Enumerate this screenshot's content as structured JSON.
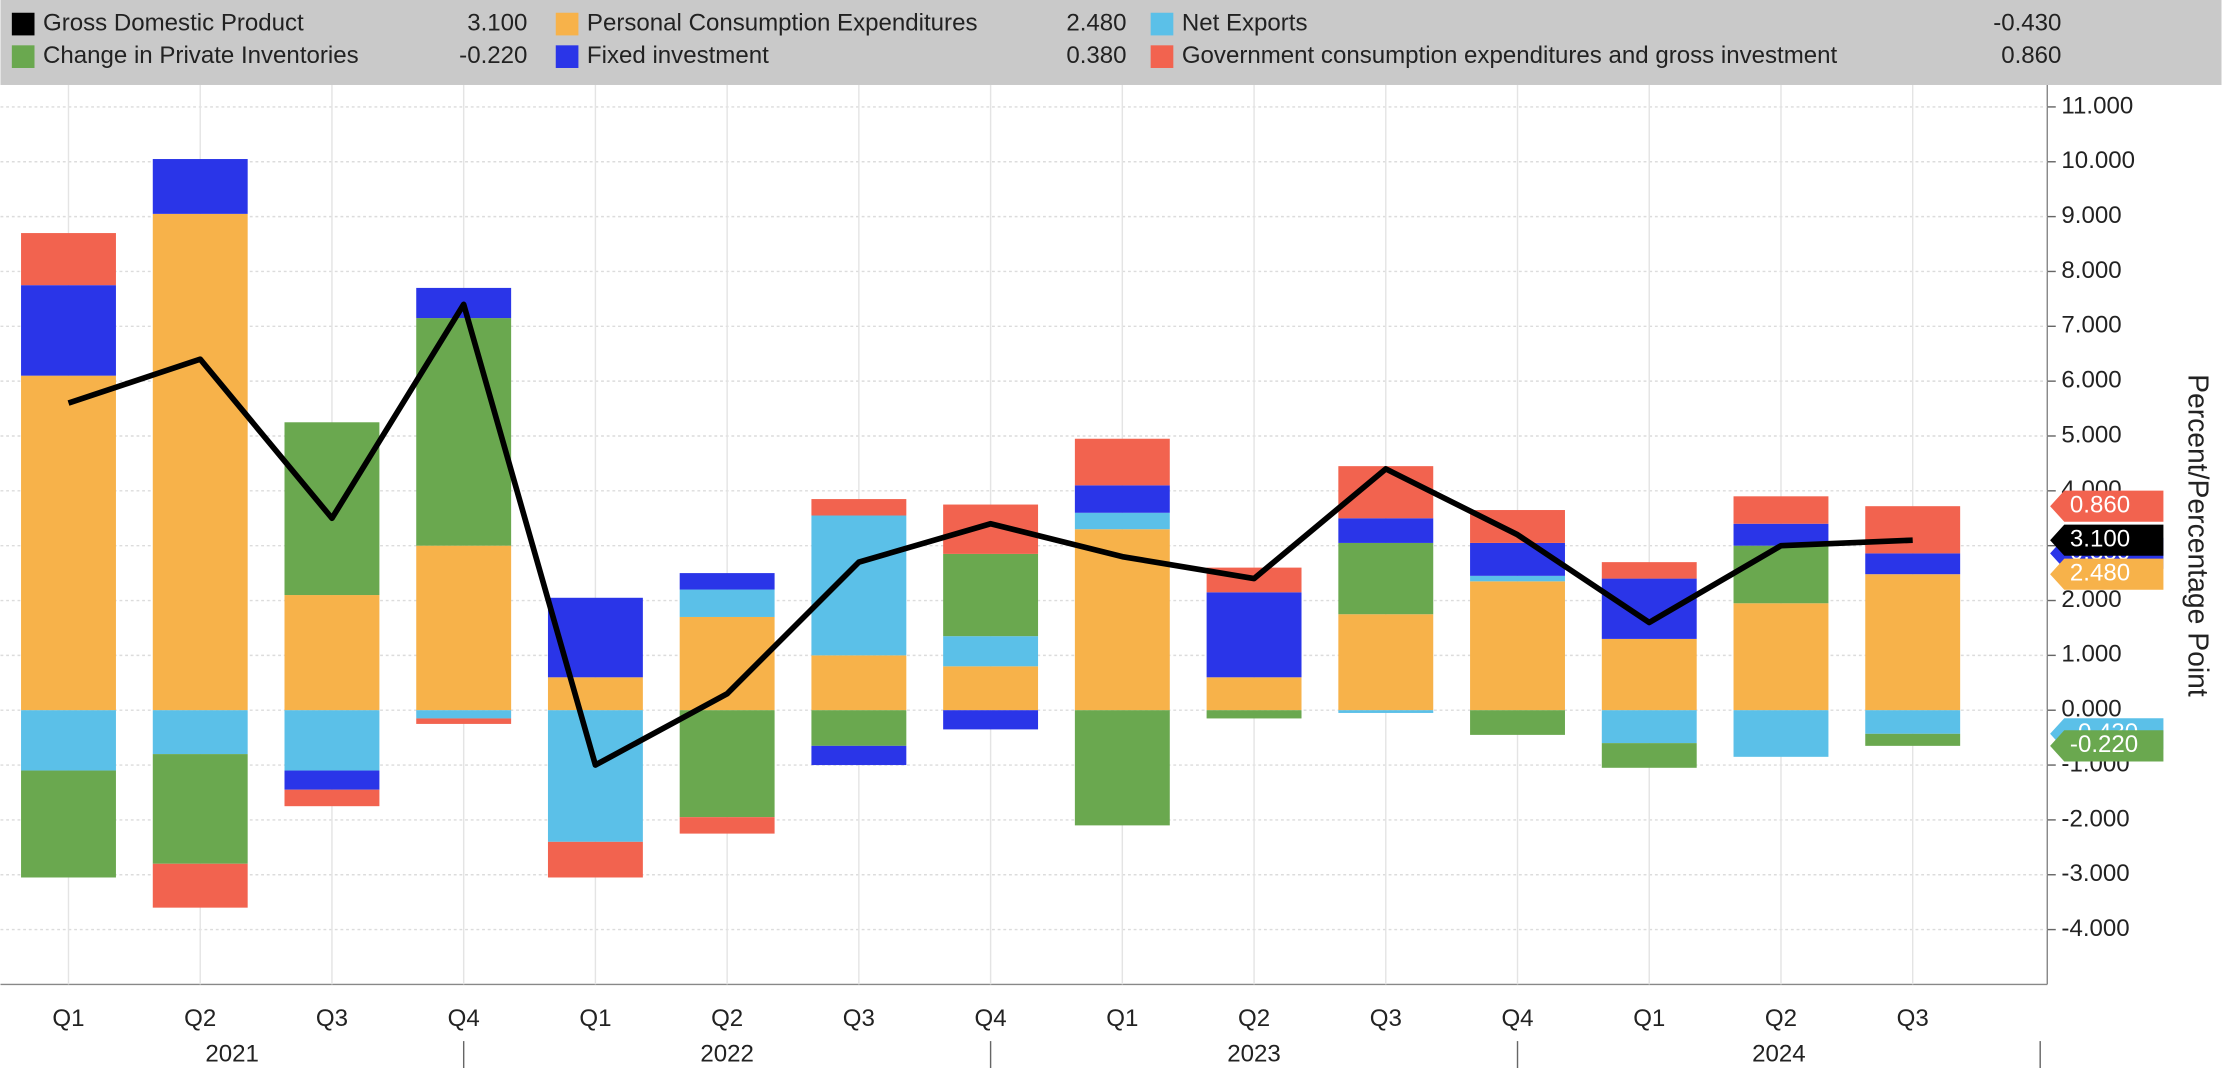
{
  "chart_data": {
    "type": "bar",
    "y_label": "Percent/Percentage Point",
    "categories": [
      "Q1",
      "Q2",
      "Q3",
      "Q4",
      "Q1",
      "Q2",
      "Q3",
      "Q4",
      "Q1",
      "Q2",
      "Q3",
      "Q4",
      "Q1",
      "Q2",
      "Q3"
    ],
    "category_groups": [
      {
        "label": "2021",
        "count": 4
      },
      {
        "label": "2022",
        "count": 4
      },
      {
        "label": "2023",
        "count": 4
      },
      {
        "label": "2024",
        "count": 3
      }
    ],
    "series": [
      {
        "name": "Gross Domestic Product",
        "type": "line",
        "color": "#000000",
        "legend_value": "3.100",
        "values": [
          5.6,
          6.4,
          3.5,
          7.4,
          -1.0,
          0.3,
          2.7,
          3.4,
          2.8,
          2.4,
          4.4,
          3.2,
          1.6,
          3.0,
          3.1
        ]
      },
      {
        "name": "Personal Consumption Expenditures",
        "type": "bar",
        "color": "#f7b24a",
        "legend_value": "2.480",
        "values": [
          6.1,
          9.05,
          2.1,
          3.0,
          0.6,
          1.7,
          1.0,
          0.8,
          3.3,
          0.6,
          1.75,
          2.35,
          1.3,
          1.95,
          2.48
        ]
      },
      {
        "name": "Net Exports",
        "type": "bar",
        "color": "#5bc0e8",
        "legend_value": "-0.430",
        "values": [
          -1.1,
          -0.8,
          -1.1,
          -0.15,
          -2.4,
          0.5,
          2.55,
          0.55,
          0.3,
          0,
          -0.05,
          0.1,
          -0.6,
          -0.85,
          -0.43
        ]
      },
      {
        "name": "Change in Private Inventories",
        "type": "bar",
        "color": "#6aa84f",
        "legend_value": "-0.220",
        "values": [
          -1.95,
          -2.0,
          3.15,
          4.15,
          0,
          -1.95,
          -0.65,
          1.5,
          -2.1,
          -0.15,
          1.3,
          -0.45,
          -0.45,
          1.05,
          -0.22
        ]
      },
      {
        "name": "Fixed investment",
        "type": "bar",
        "color": "#2a35e8",
        "legend_value": "0.380",
        "values": [
          1.65,
          1.0,
          -0.35,
          0.55,
          1.45,
          0.3,
          -0.35,
          -0.35,
          0.5,
          1.55,
          0.45,
          0.6,
          1.1,
          0.4,
          0.38
        ]
      },
      {
        "name": "Government consumption expenditures and gross investment",
        "type": "bar",
        "color": "#f2634f",
        "legend_value": "0.860",
        "values": [
          0.95,
          -0.8,
          -0.3,
          -0.1,
          -0.65,
          -0.3,
          0.3,
          0.9,
          0.85,
          0.45,
          0.95,
          0.6,
          0.3,
          0.5,
          0.86
        ]
      }
    ],
    "ylim": [
      -5,
      11.4
    ],
    "yticks": [
      {
        "value": -4,
        "label": "-4.000"
      },
      {
        "value": -3,
        "label": "-3.000"
      },
      {
        "value": -2,
        "label": "-2.000"
      },
      {
        "value": -1,
        "label": "-1.000"
      },
      {
        "value": 0,
        "label": "0.000"
      },
      {
        "value": 1,
        "label": "1.000"
      },
      {
        "value": 2,
        "label": "2.000"
      },
      {
        "value": 3,
        "label": "3.000"
      },
      {
        "value": 4,
        "label": "4.000"
      },
      {
        "value": 5,
        "label": "5.000"
      },
      {
        "value": 6,
        "label": "6.000"
      },
      {
        "value": 7,
        "label": "7.000"
      },
      {
        "value": 8,
        "label": "8.000"
      },
      {
        "value": 9,
        "label": "9.000"
      },
      {
        "value": 10,
        "label": "10.000"
      },
      {
        "value": 11,
        "label": "11.000"
      }
    ],
    "grid": true,
    "legend": "top"
  }
}
